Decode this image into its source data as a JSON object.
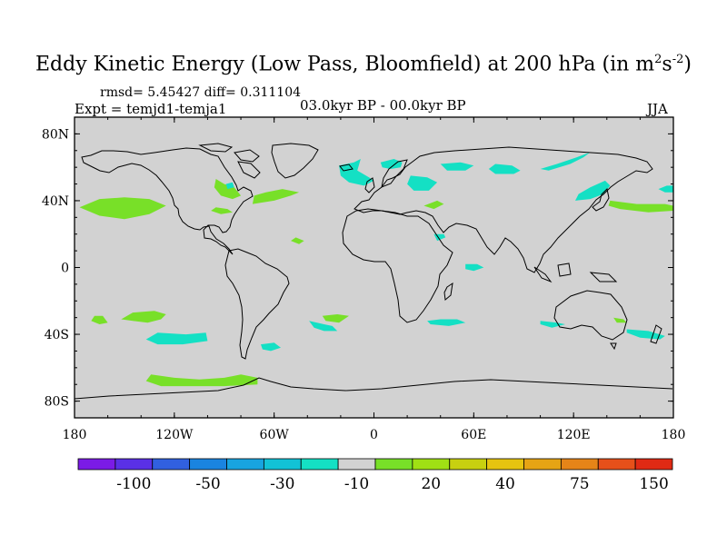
{
  "title": {
    "main": "Eddy Kinetic Energy (Low Pass, Bloomfield) at 200 hPa (in m",
    "unit_sup1": "2",
    "unit_mid": "s",
    "unit_sup2": "-2",
    "unit_close": ")"
  },
  "stats_line": "rmsd= 5.45427 diff= 0.311104",
  "experiment": "Expt = temjd1-temja1",
  "period": "03.0kyr BP - 00.0kyr BP",
  "season": "JJA",
  "map": {
    "projection": "cylindrical equidistant",
    "lon_range": [
      -180,
      180
    ],
    "lat_range": [
      -90,
      90
    ],
    "lat_ticks": [
      {
        "value": 80,
        "label": "80N"
      },
      {
        "value": 40,
        "label": "40N"
      },
      {
        "value": 0,
        "label": "0"
      },
      {
        "value": -40,
        "label": "40S"
      },
      {
        "value": -80,
        "label": "80S"
      }
    ],
    "lon_ticks": [
      {
        "value": -180,
        "label": "180"
      },
      {
        "value": -120,
        "label": "120W"
      },
      {
        "value": -60,
        "label": "60W"
      },
      {
        "value": 0,
        "label": "0"
      },
      {
        "value": 60,
        "label": "60E"
      },
      {
        "value": 120,
        "label": "120E"
      },
      {
        "value": 180,
        "label": "180"
      }
    ],
    "background_color": "#d2d2d2"
  },
  "colorbar": {
    "colors": [
      "#7b1be6",
      "#5a30e6",
      "#3160e0",
      "#1a84e0",
      "#18a4e0",
      "#12c2d6",
      "#14e0c4",
      "#d2d2d2",
      "#78e028",
      "#a0e014",
      "#c8d010",
      "#e6c410",
      "#e6a414",
      "#e68418",
      "#e6501a",
      "#e02a14"
    ],
    "labels": [
      {
        "text": "-100",
        "boundary": 2
      },
      {
        "text": "-50",
        "boundary": 4
      },
      {
        "text": "-30",
        "boundary": 6
      },
      {
        "text": "-10",
        "boundary": 8
      },
      {
        "text": "20",
        "boundary": 10
      },
      {
        "text": "40",
        "boundary": 12
      },
      {
        "text": "75",
        "boundary": 14
      },
      {
        "text": "150",
        "boundary": 16
      }
    ]
  },
  "features": [
    {
      "level": "positive",
      "color": "#78e028",
      "points": [
        [
          -165,
          31
        ],
        [
          -150,
          29
        ],
        [
          -135,
          32
        ],
        [
          -125,
          37
        ],
        [
          -135,
          41
        ],
        [
          -150,
          42
        ],
        [
          -165,
          41
        ],
        [
          -177,
          36
        ]
      ]
    },
    {
      "level": "positive",
      "color": "#78e028",
      "points": [
        [
          -95,
          53
        ],
        [
          -90,
          50
        ],
        [
          -84,
          48
        ],
        [
          -80,
          43
        ],
        [
          -85,
          41
        ],
        [
          -92,
          43
        ],
        [
          -96,
          48
        ]
      ]
    },
    {
      "level": "positive",
      "color": "#78e028",
      "points": [
        [
          -73,
          38
        ],
        [
          -60,
          40
        ],
        [
          -50,
          43
        ],
        [
          -45,
          45
        ],
        [
          -55,
          47
        ],
        [
          -65,
          45
        ],
        [
          -72,
          43
        ]
      ]
    },
    {
      "level": "positive",
      "color": "#78e028",
      "points": [
        [
          -98,
          34
        ],
        [
          -92,
          32
        ],
        [
          -85,
          33
        ],
        [
          -88,
          35
        ],
        [
          -95,
          36
        ]
      ]
    },
    {
      "level": "positive",
      "color": "#78e028",
      "points": [
        [
          -152,
          -31
        ],
        [
          -145,
          -32
        ],
        [
          -136,
          -33
        ],
        [
          -128,
          -31
        ],
        [
          -125,
          -28
        ],
        [
          -132,
          -26
        ],
        [
          -145,
          -27
        ]
      ]
    },
    {
      "level": "positive",
      "color": "#78e028",
      "points": [
        [
          -170,
          -32
        ],
        [
          -165,
          -34
        ],
        [
          -160,
          -33
        ],
        [
          -163,
          -29
        ],
        [
          -168,
          -29
        ]
      ]
    },
    {
      "level": "positive",
      "color": "#78e028",
      "points": [
        [
          -134,
          -64
        ],
        [
          -120,
          -66
        ],
        [
          -105,
          -67
        ],
        [
          -90,
          -66
        ],
        [
          -80,
          -64
        ],
        [
          -70,
          -66
        ],
        [
          -70,
          -70
        ],
        [
          -90,
          -71
        ],
        [
          -110,
          -71
        ],
        [
          -128,
          -71
        ],
        [
          -137,
          -68
        ]
      ]
    },
    {
      "level": "positive",
      "color": "#78e028",
      "points": [
        [
          144,
          -30
        ],
        [
          150,
          -31
        ],
        [
          152,
          -33
        ],
        [
          146,
          -33
        ]
      ]
    },
    {
      "level": "positive",
      "color": "#78e028",
      "points": [
        [
          142,
          40
        ],
        [
          158,
          38
        ],
        [
          175,
          38
        ],
        [
          180,
          37
        ],
        [
          180,
          34
        ],
        [
          165,
          33
        ],
        [
          148,
          35
        ],
        [
          141,
          37
        ]
      ]
    },
    {
      "level": "positive",
      "color": "#78e028",
      "points": [
        [
          30,
          37
        ],
        [
          38,
          40
        ],
        [
          42,
          38
        ],
        [
          36,
          35
        ]
      ]
    },
    {
      "level": "positive",
      "color": "#78e028",
      "points": [
        [
          -31,
          -29
        ],
        [
          -22,
          -28
        ],
        [
          -15,
          -29
        ],
        [
          -21,
          -33
        ],
        [
          -29,
          -32
        ]
      ]
    },
    {
      "level": "positive",
      "color": "#78e028",
      "points": [
        [
          -50,
          16
        ],
        [
          -45,
          14
        ],
        [
          -42,
          16
        ],
        [
          -47,
          18
        ]
      ]
    },
    {
      "level": "negative",
      "color": "#14e0c4",
      "points": [
        [
          -130,
          -39
        ],
        [
          -113,
          -40
        ],
        [
          -101,
          -39
        ],
        [
          -100,
          -44
        ],
        [
          -115,
          -46
        ],
        [
          -130,
          -46
        ],
        [
          -137,
          -43
        ]
      ]
    },
    {
      "level": "negative",
      "color": "#14e0c4",
      "points": [
        [
          -68,
          -46
        ],
        [
          -60,
          -45
        ],
        [
          -56,
          -48
        ],
        [
          -62,
          -50
        ],
        [
          -67,
          -49
        ]
      ]
    },
    {
      "level": "negative",
      "color": "#14e0c4",
      "points": [
        [
          -39,
          -32
        ],
        [
          -30,
          -34
        ],
        [
          -25,
          -35
        ],
        [
          -22,
          -38
        ],
        [
          -30,
          -38
        ],
        [
          -36,
          -36
        ]
      ]
    },
    {
      "level": "negative",
      "color": "#14e0c4",
      "points": [
        [
          32,
          -32
        ],
        [
          40,
          -31
        ],
        [
          50,
          -31
        ],
        [
          55,
          -33
        ],
        [
          45,
          -35
        ],
        [
          34,
          -34
        ]
      ]
    },
    {
      "level": "negative",
      "color": "#14e0c4",
      "points": [
        [
          100,
          -32
        ],
        [
          110,
          -33
        ],
        [
          115,
          -34
        ],
        [
          107,
          -36
        ],
        [
          100,
          -34
        ]
      ]
    },
    {
      "level": "negative",
      "color": "#14e0c4",
      "points": [
        [
          152,
          -37
        ],
        [
          165,
          -38
        ],
        [
          175,
          -41
        ],
        [
          172,
          -43
        ],
        [
          160,
          -42
        ],
        [
          152,
          -39
        ]
      ]
    },
    {
      "level": "negative",
      "color": "#14e0c4",
      "points": [
        [
          55,
          2
        ],
        [
          62,
          2
        ],
        [
          66,
          0
        ],
        [
          60,
          -2
        ],
        [
          55,
          -1
        ]
      ]
    },
    {
      "level": "negative",
      "color": "#14e0c4",
      "points": [
        [
          -21,
          61
        ],
        [
          -12,
          63
        ],
        [
          -8,
          65
        ],
        [
          -10,
          58
        ],
        [
          -3,
          54
        ],
        [
          0,
          52
        ],
        [
          -6,
          49
        ],
        [
          -15,
          51
        ],
        [
          -20,
          55
        ]
      ]
    },
    {
      "level": "negative",
      "color": "#14e0c4",
      "points": [
        [
          4,
          63
        ],
        [
          12,
          65
        ],
        [
          17,
          63
        ],
        [
          16,
          60
        ],
        [
          10,
          59
        ],
        [
          5,
          60
        ]
      ]
    },
    {
      "level": "negative",
      "color": "#14e0c4",
      "points": [
        [
          22,
          55
        ],
        [
          32,
          54
        ],
        [
          38,
          51
        ],
        [
          33,
          46
        ],
        [
          24,
          46
        ],
        [
          20,
          50
        ]
      ]
    },
    {
      "level": "negative",
      "color": "#14e0c4",
      "points": [
        [
          40,
          62
        ],
        [
          52,
          63
        ],
        [
          60,
          61
        ],
        [
          55,
          58
        ],
        [
          44,
          58
        ]
      ]
    },
    {
      "level": "negative",
      "color": "#14e0c4",
      "points": [
        [
          73,
          62
        ],
        [
          83,
          61
        ],
        [
          88,
          58
        ],
        [
          84,
          56
        ],
        [
          73,
          56
        ],
        [
          69,
          59
        ]
      ]
    },
    {
      "level": "negative",
      "color": "#14e0c4",
      "points": [
        [
          100,
          59
        ],
        [
          110,
          62
        ],
        [
          122,
          66
        ],
        [
          130,
          69
        ],
        [
          126,
          66
        ],
        [
          118,
          62
        ],
        [
          105,
          58
        ]
      ]
    },
    {
      "level": "negative",
      "color": "#14e0c4",
      "points": [
        [
          121,
          40
        ],
        [
          130,
          41
        ],
        [
          138,
          44
        ],
        [
          142,
          49
        ],
        [
          139,
          52
        ],
        [
          130,
          48
        ],
        [
          123,
          44
        ]
      ]
    },
    {
      "level": "negative",
      "color": "#14e0c4",
      "points": [
        [
          171,
          47
        ],
        [
          176,
          49
        ],
        [
          180,
          49
        ],
        [
          180,
          45
        ],
        [
          175,
          45
        ]
      ]
    },
    {
      "level": "negative",
      "color": "#14e0c4",
      "points": [
        [
          36,
          20
        ],
        [
          42,
          20
        ],
        [
          43,
          18
        ],
        [
          38,
          16
        ]
      ]
    },
    {
      "level": "negative",
      "color": "#14e0c4",
      "points": [
        [
          -89,
          50
        ],
        [
          -85,
          51
        ],
        [
          -84,
          48
        ],
        [
          -88,
          47
        ]
      ]
    }
  ]
}
